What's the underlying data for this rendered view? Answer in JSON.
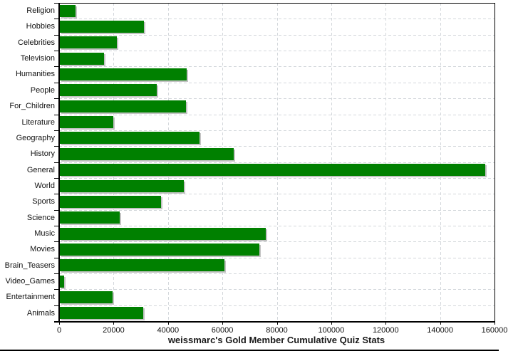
{
  "chart_data": {
    "type": "bar",
    "orientation": "horizontal",
    "title": "weissmarc's Gold Member Cumulative Quiz Stats",
    "categories": [
      "Religion",
      "Hobbies",
      "Celebrities",
      "Television",
      "Humanities",
      "People",
      "For_Children",
      "Literature",
      "Geography",
      "History",
      "General",
      "World",
      "Sports",
      "Science",
      "Music",
      "Movies",
      "Brain_Teasers",
      "Video_Games",
      "Entertainment",
      "Animals"
    ],
    "values": [
      6000,
      31100,
      21100,
      16300,
      46800,
      35700,
      46500,
      19700,
      51500,
      64000,
      156500,
      45700,
      37400,
      22200,
      75700,
      73400,
      60600,
      1600,
      19500,
      30700
    ],
    "xlabel": "",
    "ylabel": "",
    "xlim": [
      0,
      160000
    ],
    "x_ticks": [
      0,
      20000,
      40000,
      60000,
      80000,
      100000,
      120000,
      140000,
      160000
    ],
    "x_tick_labels": [
      "0",
      "20000",
      "40000",
      "60000",
      "80000",
      "100000",
      "120000",
      "140000",
      "160000"
    ],
    "grid": true,
    "legend": "none",
    "colors": {
      "bar": "#008000",
      "bar_shadow": "#c3c3c3",
      "gridline": "#d3d7db",
      "axis": "#000000",
      "text": "#111111",
      "background": "#ffffff"
    }
  }
}
